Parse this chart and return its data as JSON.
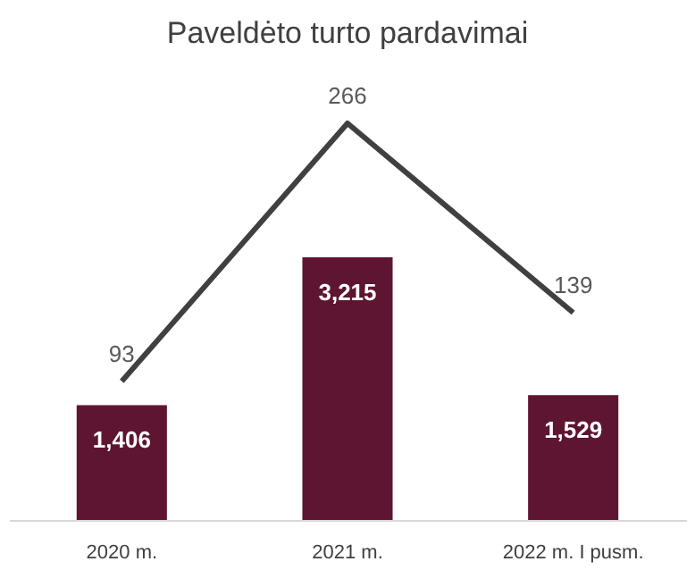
{
  "chart_data": {
    "type": "bar",
    "title": "Paveldėto turto pardavimai",
    "categories": [
      "2020 m.",
      "2021 m.",
      "2022 m. I pusm."
    ],
    "series": [
      {
        "color": "#5e1531",
        "values": [
          1406,
          3215,
          1529
        ],
        "value_labels": [
          "1,406",
          "3,215",
          "1,529"
        ]
      },
      {
        "type": "line",
        "axis": "y2",
        "color": "#404040",
        "values": [
          93,
          266,
          139
        ],
        "value_labels": [
          "93",
          "266",
          "139"
        ]
      }
    ],
    "grid": false,
    "tick_labels": "x"
  }
}
